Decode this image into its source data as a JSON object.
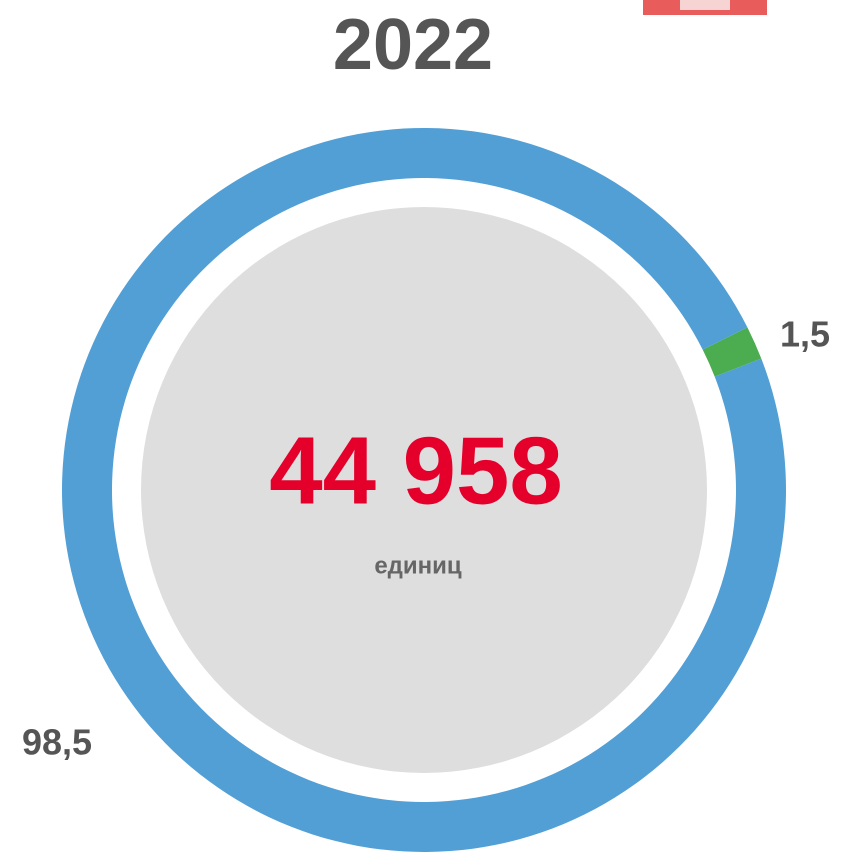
{
  "chart_data": {
    "type": "donut",
    "title": "2022",
    "center_value": "44 958",
    "center_label": "единиц",
    "categories": [
      null,
      null
    ],
    "values": [
      98.5,
      1.5
    ],
    "value_labels": [
      "98,5",
      "1,5"
    ],
    "colors": [
      "#529fd6",
      "#4cad50"
    ]
  }
}
